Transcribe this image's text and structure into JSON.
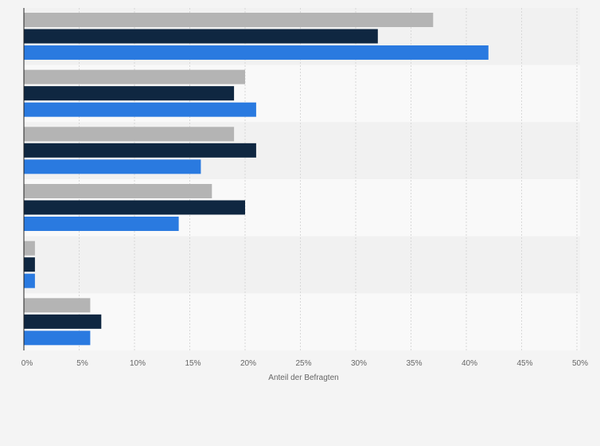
{
  "chart_data": {
    "type": "bar",
    "orientation": "horizontal",
    "categories": [
      "",
      "",
      "",
      "",
      "",
      ""
    ],
    "series": [
      {
        "color": "#b4b4b4",
        "values": [
          37,
          20,
          19,
          17,
          1,
          6
        ]
      },
      {
        "color": "#0f2741",
        "values": [
          32,
          19,
          21,
          20,
          1,
          7
        ]
      },
      {
        "color": "#2a7ae0",
        "values": [
          42,
          21,
          16,
          14,
          1,
          6
        ]
      }
    ],
    "xlim": [
      0,
      50
    ],
    "xticks": [
      0,
      5,
      10,
      15,
      20,
      25,
      30,
      35,
      40,
      45,
      50
    ],
    "tick_suffix": "%",
    "xlabel": "Anteil der Befragten",
    "grid": true,
    "legend": "none",
    "band_colors": [
      "#f1f1f1",
      "#f9f9f9"
    ]
  }
}
